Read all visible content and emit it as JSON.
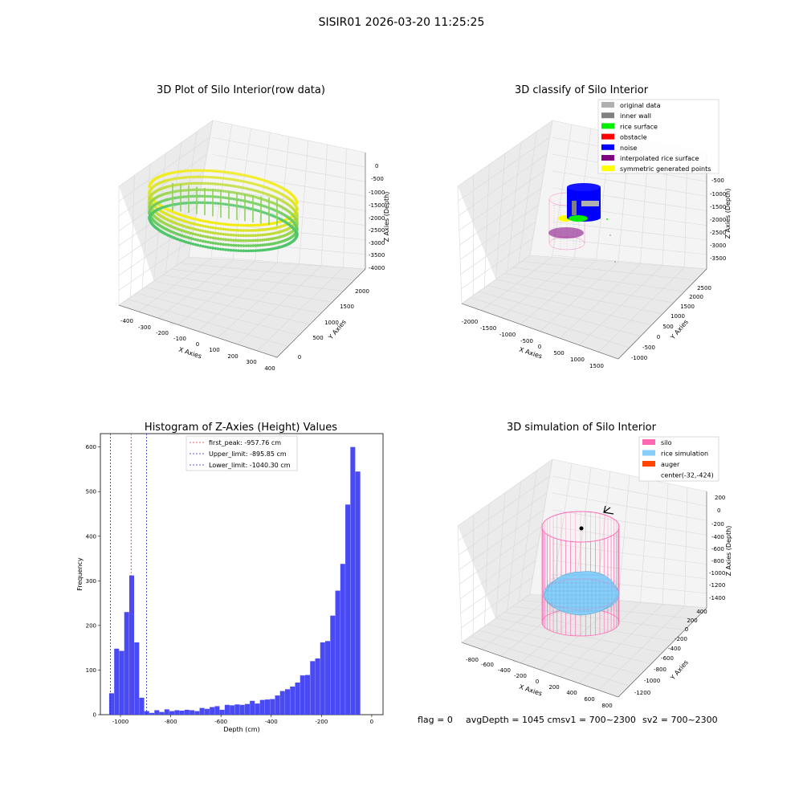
{
  "figure": {
    "suptitle": "SISIR01 2026-03-20 11:25:25",
    "status": {
      "flag": "flag = 0",
      "avg": "avgDepth = 1045 cmsv1 = 700~2300",
      "sv2": "sv2 = 700~2300"
    }
  },
  "colors": {
    "hist_bar": "#4a4af5",
    "first_peak": "#e03030",
    "limits": "#2a2ad0",
    "silo": "#ff69b4",
    "rice_sim": "#87cefa",
    "auger": "#ff4500",
    "noise": "#0000ff",
    "rice_surface": "#00ee00",
    "interp": "#800080",
    "symmetric": "#ffff00",
    "original": "#b0b0b0",
    "inner_wall": "#808080"
  },
  "chart_data": [
    {
      "type": "scatter",
      "title": "3D Plot of Silo Interior(row data)",
      "xlabel": "X Axies",
      "ylabel": "Y Axies",
      "zlabel": "Z Axies (Depth)",
      "x_ticks": [
        "-400",
        "-300",
        "-200",
        "-100",
        "0",
        "100",
        "200",
        "300",
        "400"
      ],
      "y_ticks": [
        "0",
        "500",
        "1000",
        "1500",
        "2000"
      ],
      "z_ticks": [
        "0",
        "-500",
        "-1000",
        "-1500",
        "-2000",
        "-2500",
        "-3000",
        "-3500",
        "-4000"
      ]
    },
    {
      "type": "scatter",
      "title": "3D classify of Silo Interior",
      "xlabel": "X Axies",
      "ylabel": "Y Axies",
      "zlabel": "Z Axies (Depth)",
      "x_ticks": [
        "-2000",
        "-1500",
        "-1000",
        "-500",
        "0",
        "500",
        "1000",
        "1500"
      ],
      "y_ticks": [
        "-1000",
        "-500",
        "0",
        "500",
        "1000",
        "1500",
        "2000",
        "2500"
      ],
      "z_ticks": [
        "-500",
        "-1000",
        "-1500",
        "-2000",
        "-2500",
        "-3000",
        "-3500"
      ],
      "legend": [
        {
          "name": "original data",
          "color": "#b0b0b0"
        },
        {
          "name": "inner wall",
          "color": "#808080"
        },
        {
          "name": "rice surface",
          "color": "#00ee00"
        },
        {
          "name": "obstacle",
          "color": "#ff0000"
        },
        {
          "name": "noise",
          "color": "#0000ff"
        },
        {
          "name": "interpolated rice surface",
          "color": "#800080"
        },
        {
          "name": "symmetric generated points",
          "color": "#ffff00"
        }
      ]
    },
    {
      "type": "bar",
      "title": "Histogram of Z-Axies (Height) Values",
      "xlabel": "Depth (cm)",
      "ylabel": "Frequency",
      "xlim": [
        -1080,
        45
      ],
      "ylim": [
        0,
        630
      ],
      "bin_width": 20,
      "bins": [
        {
          "start": -1045,
          "value": 48
        },
        {
          "start": -1025,
          "value": 148
        },
        {
          "start": -1005,
          "value": 143
        },
        {
          "start": -985,
          "value": 230
        },
        {
          "start": -965,
          "value": 312
        },
        {
          "start": -945,
          "value": 162
        },
        {
          "start": -925,
          "value": 38
        },
        {
          "start": -905,
          "value": 8
        },
        {
          "start": -885,
          "value": 4
        },
        {
          "start": -865,
          "value": 10
        },
        {
          "start": -845,
          "value": 6
        },
        {
          "start": -825,
          "value": 12
        },
        {
          "start": -805,
          "value": 8
        },
        {
          "start": -785,
          "value": 10
        },
        {
          "start": -765,
          "value": 9
        },
        {
          "start": -745,
          "value": 11
        },
        {
          "start": -725,
          "value": 10
        },
        {
          "start": -705,
          "value": 8
        },
        {
          "start": -685,
          "value": 15
        },
        {
          "start": -665,
          "value": 13
        },
        {
          "start": -645,
          "value": 17
        },
        {
          "start": -625,
          "value": 19
        },
        {
          "start": -605,
          "value": 11
        },
        {
          "start": -585,
          "value": 22
        },
        {
          "start": -565,
          "value": 21
        },
        {
          "start": -545,
          "value": 23
        },
        {
          "start": -525,
          "value": 22
        },
        {
          "start": -505,
          "value": 24
        },
        {
          "start": -485,
          "value": 31
        },
        {
          "start": -465,
          "value": 25
        },
        {
          "start": -445,
          "value": 33
        },
        {
          "start": -425,
          "value": 34
        },
        {
          "start": -405,
          "value": 35
        },
        {
          "start": -385,
          "value": 43
        },
        {
          "start": -365,
          "value": 53
        },
        {
          "start": -345,
          "value": 57
        },
        {
          "start": -325,
          "value": 63
        },
        {
          "start": -305,
          "value": 72
        },
        {
          "start": -285,
          "value": 88
        },
        {
          "start": -265,
          "value": 89
        },
        {
          "start": -245,
          "value": 120
        },
        {
          "start": -225,
          "value": 126
        },
        {
          "start": -205,
          "value": 162
        },
        {
          "start": -185,
          "value": 165
        },
        {
          "start": -165,
          "value": 222
        },
        {
          "start": -145,
          "value": 278
        },
        {
          "start": -125,
          "value": 338
        },
        {
          "start": -105,
          "value": 471
        },
        {
          "start": -85,
          "value": 600
        },
        {
          "start": -65,
          "value": 545
        }
      ],
      "x_ticks": [
        -1000,
        -800,
        -600,
        -400,
        -200,
        0
      ],
      "x_tick_labels": [
        "-1000",
        "-800",
        "-600",
        "-400",
        "-200",
        "0"
      ],
      "y_ticks": [
        0,
        100,
        200,
        300,
        400,
        500,
        600
      ],
      "y_tick_labels": [
        "0",
        "100",
        "200",
        "300",
        "400",
        "500",
        "600"
      ],
      "vlines": [
        {
          "name": "first_peak: -957.76 cm",
          "x": -957.76,
          "color": "#e03030"
        },
        {
          "name": "Upper_limit: -895.85 cm",
          "x": -895.85,
          "color": "#2a2ad0"
        },
        {
          "name": "Lower_limit: -1040.30 cm",
          "x": -1040.3,
          "color": "#2a2ad0"
        }
      ],
      "legend_position": "upper-center"
    },
    {
      "type": "scatter",
      "title": "3D simulation of Silo Interior",
      "xlabel": "X Axies",
      "ylabel": "Y Axies",
      "zlabel": "Z Axies (Depth)",
      "x_ticks": [
        "-800",
        "-600",
        "-400",
        "-200",
        "0",
        "200",
        "400",
        "600",
        "800"
      ],
      "y_ticks": [
        "-1200",
        "-1000",
        "-800",
        "-600",
        "-400",
        "-200",
        "0",
        "200",
        "400"
      ],
      "z_ticks": [
        "200",
        "0",
        "-200",
        "-400",
        "-600",
        "-800",
        "-1000",
        "-1200",
        "-1400"
      ],
      "legend": [
        {
          "name": "silo",
          "color": "#ff69b4"
        },
        {
          "name": "rice simulation",
          "color": "#87cefa"
        },
        {
          "name": "auger",
          "color": "#ff4500"
        },
        {
          "name": "center(-32,-424)",
          "color": ""
        }
      ]
    }
  ]
}
